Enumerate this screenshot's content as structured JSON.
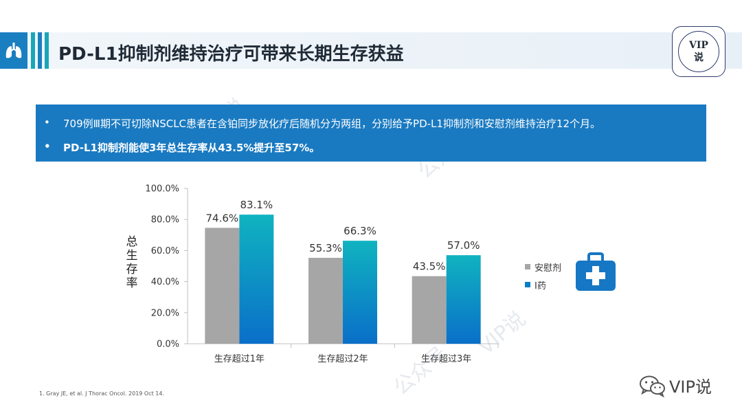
{
  "header": {
    "title": "PD-L1抑制剂维持治疗可带来长期生存获益",
    "badge_line1": "VIP",
    "badge_line2": "说"
  },
  "summary": {
    "bullets": [
      "709例Ⅲ期不可切除NSCLC患者在含铂同步放化疗后随机分为两组，分别给予PD-L1抑制剂和安慰剂维持治疗12个月。",
      "PD-L1抑制剂能使3年总生存率从43.5%提升至57%。"
    ],
    "bullet_symbol": "•"
  },
  "chart_data": {
    "type": "bar",
    "categories": [
      "生存超过1年",
      "生存超过2年",
      "生存超过3年"
    ],
    "series": [
      {
        "name": "安慰剂",
        "values": [
          74.6,
          55.3,
          43.5
        ],
        "labels": [
          "74.6%",
          "55.3%",
          "43.5%"
        ],
        "color": "#a6a6a6"
      },
      {
        "name": "I药",
        "values": [
          83.1,
          66.3,
          57.0
        ],
        "labels": [
          "83.1%",
          "66.3%",
          "57.0%"
        ],
        "color": "#0a8fc8"
      }
    ],
    "yticks": [
      "0.0%",
      "20.0%",
      "40.0%",
      "60.0%",
      "80.0%",
      "100.0%"
    ],
    "ylim": [
      0,
      100
    ],
    "ylabel": "总生存率",
    "legend_position": "right",
    "grid": false
  },
  "icons": {
    "lung": "lungs-icon",
    "medkit": "medical-kit-icon",
    "wechat": "wechat-icon"
  },
  "footnote": "1. Gray JE, et al. J Thorac Oncol. 2019 Oct 14.",
  "watermark": {
    "account": "VIP说",
    "text_a": "公众号",
    "text_b": "VIP说"
  },
  "colors": {
    "accent_blue": "#1a7ac1",
    "accent_teal": "#1aa6b7",
    "placebo_gray": "#a6a6a6"
  }
}
